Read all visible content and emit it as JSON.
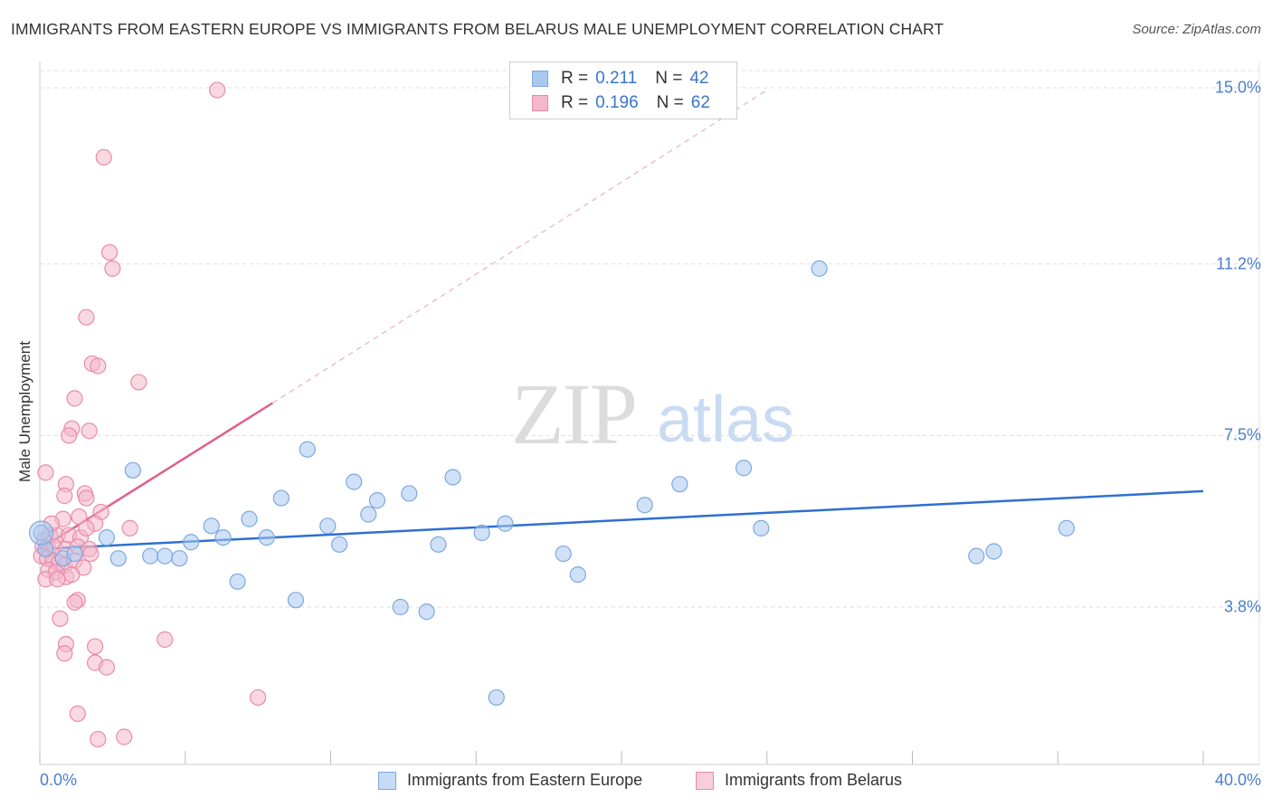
{
  "title": "IMMIGRANTS FROM EASTERN EUROPE VS IMMIGRANTS FROM BELARUS MALE UNEMPLOYMENT CORRELATION CHART",
  "source": "Source: ZipAtlas.com",
  "watermark": {
    "zip": "ZIP",
    "atlas": "atlas"
  },
  "colors": {
    "blue_fill": "#a9c8f0",
    "blue_stroke": "#7aa8e0",
    "blue_line": "#2f6fd0",
    "pink_fill": "#f4b8cb",
    "pink_stroke": "#e98aa8",
    "pink_line": "#e0608a",
    "tick_label": "#4a7ecf",
    "grid": "#dddddd"
  },
  "legend": {
    "rows": [
      {
        "r_label": "R =",
        "r_value": "0.211",
        "n_label": "N =",
        "n_value": "42"
      },
      {
        "r_label": "R =",
        "r_value": "0.196",
        "n_label": "N =",
        "n_value": "62"
      }
    ]
  },
  "bottom_legend": {
    "series1": "Immigrants from Eastern Europe",
    "series2": "Immigrants from Belarus"
  },
  "chart_data": {
    "type": "scatter",
    "title": "IMMIGRANTS FROM EASTERN EUROPE VS IMMIGRANTS FROM BELARUS MALE UNEMPLOYMENT CORRELATION CHART",
    "xlabel": "",
    "ylabel": "Male Unemployment",
    "xlim": [
      0,
      40
    ],
    "ylim": [
      0,
      15.5
    ],
    "x_tick_labels": {
      "min": "0.0%",
      "max": "40.0%"
    },
    "y_ticks": [
      {
        "value": 15.0,
        "label": "15.0%"
      },
      {
        "value": 11.2,
        "label": "11.2%"
      },
      {
        "value": 7.5,
        "label": "7.5%"
      },
      {
        "value": 3.8,
        "label": "3.8%"
      }
    ],
    "series": [
      {
        "name": "Immigrants from Eastern Europe",
        "color": "blue",
        "R": 0.211,
        "N": 42,
        "trend": {
          "x0": 0.0,
          "y0": 5.05,
          "x1": 40.0,
          "y1": 6.3
        },
        "points": [
          [
            0.05,
            5.4
          ],
          [
            0.8,
            4.85
          ],
          [
            1.2,
            4.95
          ],
          [
            2.3,
            5.3
          ],
          [
            2.7,
            4.85
          ],
          [
            3.2,
            6.75
          ],
          [
            3.8,
            4.9
          ],
          [
            4.3,
            4.9
          ],
          [
            4.8,
            4.85
          ],
          [
            5.2,
            5.2
          ],
          [
            5.9,
            5.55
          ],
          [
            6.3,
            5.3
          ],
          [
            6.8,
            4.35
          ],
          [
            7.2,
            5.7
          ],
          [
            7.8,
            5.3
          ],
          [
            8.3,
            6.15
          ],
          [
            8.8,
            3.95
          ],
          [
            9.2,
            7.2
          ],
          [
            9.9,
            5.55
          ],
          [
            10.3,
            5.15
          ],
          [
            10.8,
            6.5
          ],
          [
            11.3,
            5.8
          ],
          [
            11.6,
            6.1
          ],
          [
            12.4,
            3.8
          ],
          [
            12.7,
            6.25
          ],
          [
            13.3,
            3.7
          ],
          [
            13.7,
            5.15
          ],
          [
            14.2,
            6.6
          ],
          [
            15.2,
            5.4
          ],
          [
            15.7,
            1.85
          ],
          [
            16.0,
            5.6
          ],
          [
            18.0,
            4.95
          ],
          [
            18.5,
            4.5
          ],
          [
            20.8,
            6.0
          ],
          [
            22.0,
            6.45
          ],
          [
            24.2,
            6.8
          ],
          [
            24.8,
            5.5
          ],
          [
            26.8,
            11.1
          ],
          [
            32.2,
            4.9
          ],
          [
            32.8,
            5.0
          ],
          [
            35.3,
            5.5
          ],
          [
            0.2,
            5.05
          ]
        ]
      },
      {
        "name": "Immigrants from Belarus",
        "color": "pink",
        "R": 0.196,
        "N": 62,
        "trend": {
          "x0": 0.0,
          "y0": 5.05,
          "x1": 8.0,
          "y1": 8.2
        },
        "trend_extension": {
          "x0": 8.0,
          "y0": 8.2,
          "x1": 25.0,
          "y1": 14.95
        },
        "points": [
          [
            6.1,
            14.95
          ],
          [
            2.2,
            13.5
          ],
          [
            2.4,
            11.45
          ],
          [
            2.5,
            11.1
          ],
          [
            1.6,
            10.05
          ],
          [
            1.8,
            9.05
          ],
          [
            2.0,
            9.0
          ],
          [
            3.4,
            8.65
          ],
          [
            1.2,
            8.3
          ],
          [
            1.1,
            7.65
          ],
          [
            1.0,
            7.5
          ],
          [
            1.7,
            7.6
          ],
          [
            0.2,
            6.7
          ],
          [
            0.9,
            6.45
          ],
          [
            0.85,
            6.2
          ],
          [
            1.55,
            6.25
          ],
          [
            1.6,
            6.15
          ],
          [
            2.1,
            5.85
          ],
          [
            0.8,
            5.7
          ],
          [
            1.35,
            5.75
          ],
          [
            1.9,
            5.6
          ],
          [
            3.1,
            5.5
          ],
          [
            0.15,
            5.25
          ],
          [
            0.35,
            5.35
          ],
          [
            0.6,
            5.35
          ],
          [
            1.0,
            5.35
          ],
          [
            1.4,
            5.3
          ],
          [
            0.1,
            5.1
          ],
          [
            0.3,
            5.05
          ],
          [
            0.5,
            5.1
          ],
          [
            0.9,
            5.05
          ],
          [
            1.3,
            5.1
          ],
          [
            1.7,
            5.05
          ],
          [
            0.05,
            4.9
          ],
          [
            0.25,
            4.85
          ],
          [
            0.45,
            4.8
          ],
          [
            0.65,
            4.75
          ],
          [
            0.85,
            4.7
          ],
          [
            1.2,
            4.8
          ],
          [
            1.5,
            4.65
          ],
          [
            1.75,
            4.95
          ],
          [
            0.3,
            4.6
          ],
          [
            0.55,
            4.55
          ],
          [
            0.9,
            4.45
          ],
          [
            1.1,
            4.5
          ],
          [
            0.2,
            4.4
          ],
          [
            0.6,
            4.4
          ],
          [
            1.3,
            3.95
          ],
          [
            1.2,
            3.9
          ],
          [
            0.7,
            3.55
          ],
          [
            0.9,
            3.0
          ],
          [
            1.9,
            2.95
          ],
          [
            4.3,
            3.1
          ],
          [
            0.85,
            2.8
          ],
          [
            1.9,
            2.6
          ],
          [
            2.3,
            2.5
          ],
          [
            7.5,
            1.85
          ],
          [
            1.3,
            1.5
          ],
          [
            2.0,
            0.95
          ],
          [
            2.9,
            1.0
          ],
          [
            1.6,
            5.5
          ],
          [
            0.4,
            5.6
          ]
        ]
      }
    ]
  }
}
